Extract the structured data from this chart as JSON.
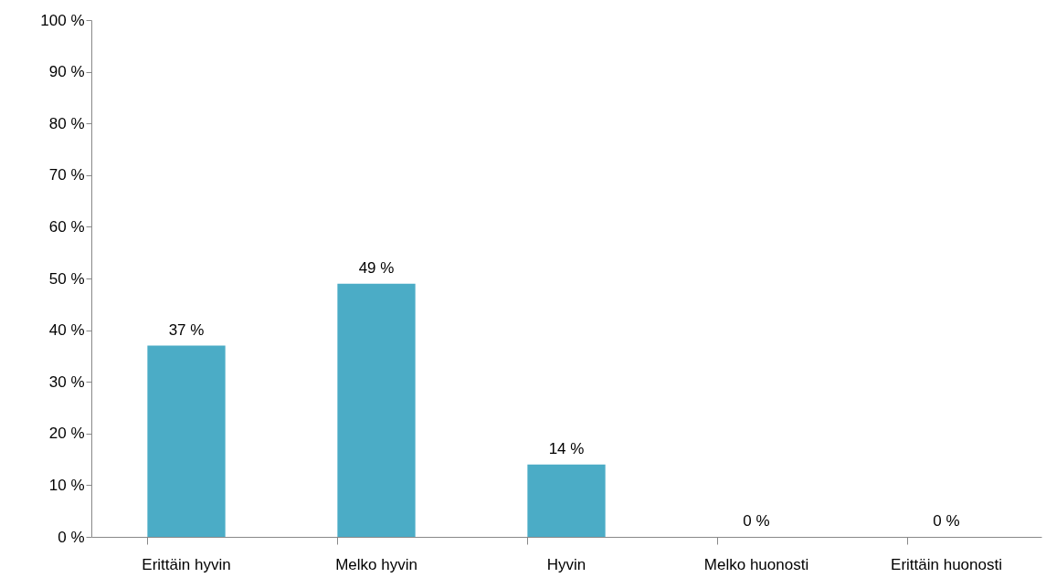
{
  "chart_data": {
    "type": "bar",
    "categories": [
      "Erittäin hyvin",
      "Melko hyvin",
      "Hyvin",
      "Melko huonosti",
      "Erittäin huonosti"
    ],
    "values": [
      37,
      49,
      14,
      0,
      0
    ],
    "value_labels": [
      "37 %",
      "49 %",
      "14 %",
      "0 %",
      "0 %"
    ],
    "color": "#4bacc6",
    "ylim": [
      0,
      100
    ],
    "yticks": [
      {
        "value": 0,
        "label": "0 %"
      },
      {
        "value": 10,
        "label": "10 %"
      },
      {
        "value": 20,
        "label": "20 %"
      },
      {
        "value": 30,
        "label": "30 %"
      },
      {
        "value": 40,
        "label": "40 %"
      },
      {
        "value": 50,
        "label": "50 %"
      },
      {
        "value": 60,
        "label": "60 %"
      },
      {
        "value": 70,
        "label": "70 %"
      },
      {
        "value": 80,
        "label": "80 %"
      },
      {
        "value": 90,
        "label": "90 %"
      },
      {
        "value": 100,
        "label": "100 %"
      }
    ],
    "grid": false
  }
}
